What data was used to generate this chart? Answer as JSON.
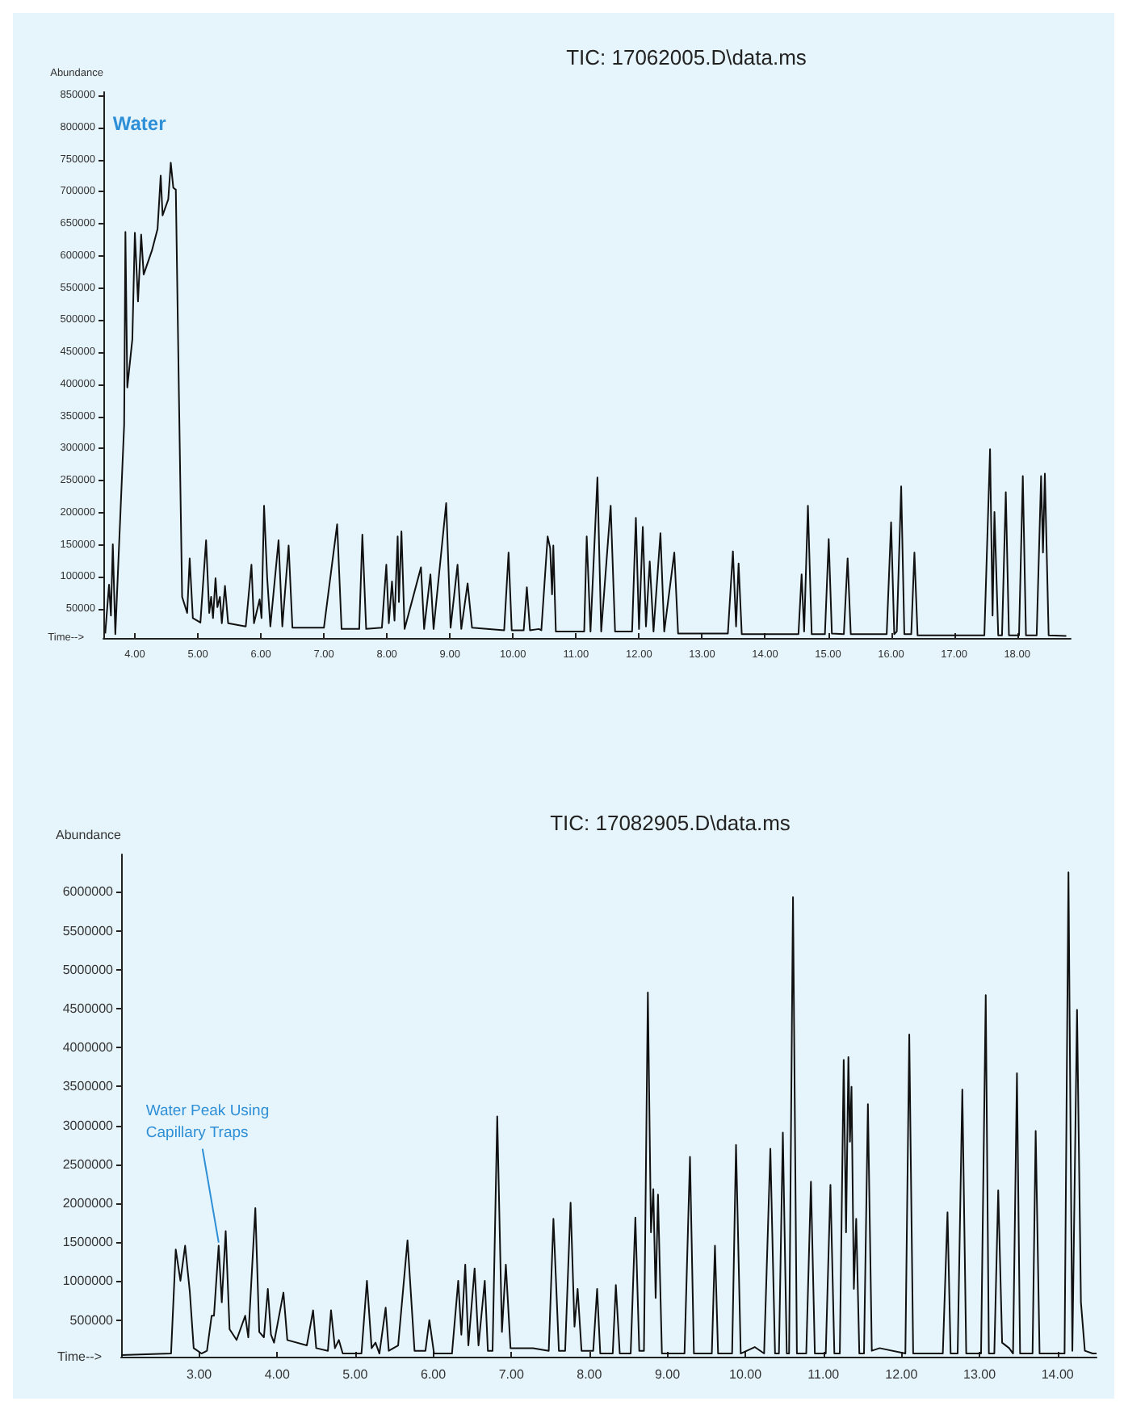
{
  "chart_data": [
    {
      "type": "line",
      "title": "TIC: 17062005.D\\data.ms",
      "xlabel": "Time-->",
      "ylabel": "Abundance",
      "marker": "none",
      "grid": false,
      "xlim": [
        3.5,
        18.85
      ],
      "ylim": [
        5000,
        855000
      ],
      "xticks": [
        {
          "value": 4,
          "label": "4.00"
        },
        {
          "value": 5,
          "label": "5.00"
        },
        {
          "value": 6,
          "label": "6.00"
        },
        {
          "value": 7,
          "label": "7.00"
        },
        {
          "value": 8,
          "label": "8.00"
        },
        {
          "value": 9,
          "label": "9.00"
        },
        {
          "value": 10,
          "label": "10.00"
        },
        {
          "value": 11,
          "label": "11.00"
        },
        {
          "value": 12,
          "label": "12.00"
        },
        {
          "value": 13,
          "label": "13.00"
        },
        {
          "value": 14,
          "label": "14.00"
        },
        {
          "value": 15,
          "label": "15.00"
        },
        {
          "value": 16,
          "label": "16.00"
        },
        {
          "value": 17,
          "label": "17.00"
        },
        {
          "value": 18,
          "label": "18.00"
        }
      ],
      "yticks": [
        50000,
        100000,
        150000,
        200000,
        250000,
        300000,
        350000,
        400000,
        450000,
        500000,
        550000,
        600000,
        650000,
        700000,
        750000,
        800000,
        850000
      ],
      "annotations": [
        {
          "text": "Water",
          "x": 4.57,
          "y": 745000
        }
      ],
      "series": [
        {
          "color": "#111111",
          "x": [
            3.53,
            3.59,
            3.62,
            3.65,
            3.69,
            3.83,
            3.85,
            3.88,
            3.96,
            4.0,
            4.05,
            4.1,
            4.14,
            4.27,
            4.36,
            4.41,
            4.44,
            4.53,
            4.57,
            4.61,
            4.65,
            4.7,
            4.75,
            4.83,
            4.87,
            4.92,
            5.04,
            5.13,
            5.18,
            5.21,
            5.24,
            5.28,
            5.31,
            5.35,
            5.38,
            5.43,
            5.48,
            5.76,
            5.85,
            5.89,
            5.98,
            6.01,
            6.05,
            6.1,
            6.15,
            6.28,
            6.34,
            6.44,
            6.5,
            7.0,
            7.21,
            7.28,
            7.56,
            7.61,
            7.67,
            7.92,
            7.99,
            8.03,
            8.08,
            8.12,
            8.17,
            8.19,
            8.23,
            8.28,
            8.54,
            8.59,
            8.69,
            8.74,
            8.94,
            9.01,
            9.12,
            9.18,
            9.28,
            9.35,
            9.86,
            9.93,
            9.98,
            10.17,
            10.22,
            10.27,
            10.41,
            10.45,
            10.55,
            10.59,
            10.62,
            10.64,
            10.68,
            11.13,
            11.17,
            11.23,
            11.34,
            11.4,
            11.55,
            11.62,
            11.89,
            11.95,
            12.0,
            12.06,
            12.11,
            12.17,
            12.23,
            12.34,
            12.4,
            12.56,
            12.62,
            13.41,
            13.49,
            13.54,
            13.58,
            13.63,
            14.53,
            14.58,
            14.62,
            14.68,
            14.74,
            14.95,
            15.01,
            15.06,
            15.25,
            15.31,
            15.36,
            15.93,
            16.0,
            16.05,
            16.09,
            16.16,
            16.21,
            16.32,
            16.37,
            16.42,
            17.48,
            17.57,
            17.61,
            17.64,
            17.7,
            17.76,
            17.82,
            17.87,
            18.03,
            18.09,
            18.14,
            18.31,
            18.38,
            18.41,
            18.44,
            18.5,
            18.78
          ],
          "values": [
            12000,
            88000,
            40000,
            151000,
            11000,
            337000,
            637000,
            395000,
            470000,
            636000,
            529000,
            633000,
            571000,
            608000,
            642000,
            725000,
            663000,
            688000,
            745000,
            706000,
            703000,
            378000,
            69000,
            44000,
            129000,
            36000,
            29000,
            157000,
            44000,
            69000,
            36000,
            98000,
            53000,
            69000,
            28000,
            86000,
            28000,
            23000,
            119000,
            28000,
            65000,
            36000,
            211000,
            98000,
            23000,
            157000,
            23000,
            149000,
            21000,
            21000,
            182000,
            19000,
            19000,
            166000,
            19000,
            21000,
            119000,
            28000,
            93000,
            32000,
            163000,
            61000,
            171000,
            19000,
            115000,
            19000,
            104000,
            19000,
            215000,
            21000,
            119000,
            19000,
            90000,
            21000,
            17000,
            138000,
            17000,
            17000,
            84000,
            17000,
            19000,
            17000,
            163000,
            145000,
            73000,
            149000,
            15000,
            15000,
            163000,
            15000,
            255000,
            15000,
            211000,
            15000,
            15000,
            192000,
            19000,
            178000,
            23000,
            124000,
            15000,
            168000,
            15000,
            138000,
            12000,
            12000,
            140000,
            23000,
            121000,
            11000,
            11000,
            104000,
            15000,
            211000,
            11000,
            11000,
            159000,
            12000,
            11000,
            129000,
            11000,
            11000,
            185000,
            11000,
            15000,
            241000,
            11000,
            11000,
            138000,
            9000,
            9000,
            299000,
            40000,
            201000,
            9000,
            9000,
            232000,
            9000,
            9000,
            257000,
            9000,
            9000,
            257000,
            138000,
            261000,
            9000,
            8000
          ]
        }
      ]
    },
    {
      "type": "line",
      "title": "TIC: 17082905.D\\data.ms",
      "xlabel": "Time-->",
      "ylabel": "Abundance",
      "marker": "none",
      "grid": false,
      "xlim": [
        2,
        14.5
      ],
      "ylim": [
        30000,
        6480000
      ],
      "xticks": [
        {
          "value": 3,
          "label": "3.00"
        },
        {
          "value": 4,
          "label": "4.00"
        },
        {
          "value": 5,
          "label": "5.00"
        },
        {
          "value": 6,
          "label": "6.00"
        },
        {
          "value": 7,
          "label": "7.00"
        },
        {
          "value": 8,
          "label": "8.00"
        },
        {
          "value": 9,
          "label": "9.00"
        },
        {
          "value": 10,
          "label": "10.00"
        },
        {
          "value": 11,
          "label": "11.00"
        },
        {
          "value": 12,
          "label": "12.00"
        },
        {
          "value": 13,
          "label": "13.00"
        },
        {
          "value": 14,
          "label": "14.00"
        }
      ],
      "yticks": [
        500000,
        1000000,
        1500000,
        2000000,
        2500000,
        3000000,
        3500000,
        4000000,
        4500000,
        5000000,
        5500000,
        6000000
      ],
      "annotations": [
        {
          "text": "Water Peak Using Capillary Traps",
          "x": 3.25,
          "y": 1455000
        }
      ],
      "series": [
        {
          "color": "#111111",
          "x": [
            2.0,
            2.64,
            2.7,
            2.76,
            2.82,
            2.88,
            2.93,
            3.03,
            3.1,
            3.16,
            3.19,
            3.25,
            3.29,
            3.34,
            3.39,
            3.48,
            3.59,
            3.63,
            3.72,
            3.77,
            3.83,
            3.88,
            3.92,
            3.96,
            4.08,
            4.13,
            4.38,
            4.46,
            4.5,
            4.65,
            4.69,
            4.74,
            4.79,
            4.84,
            5.08,
            5.15,
            5.21,
            5.26,
            5.31,
            5.39,
            5.43,
            5.55,
            5.67,
            5.76,
            5.9,
            5.95,
            6.01,
            6.24,
            6.32,
            6.36,
            6.41,
            6.45,
            6.53,
            6.58,
            6.66,
            6.7,
            6.76,
            6.82,
            6.88,
            6.93,
            6.99,
            7.28,
            7.48,
            7.54,
            7.61,
            7.69,
            7.76,
            7.81,
            7.85,
            7.9,
            8.05,
            8.1,
            8.14,
            8.3,
            8.34,
            8.39,
            8.53,
            8.59,
            8.64,
            8.7,
            8.75,
            8.79,
            8.82,
            8.85,
            8.88,
            8.93,
            9.22,
            9.29,
            9.34,
            9.57,
            9.61,
            9.65,
            9.83,
            9.88,
            9.94,
            10.12,
            10.24,
            10.32,
            10.38,
            10.43,
            10.48,
            10.53,
            10.56,
            10.61,
            10.66,
            10.78,
            10.84,
            10.89,
            11.03,
            11.09,
            11.14,
            11.21,
            11.26,
            11.29,
            11.32,
            11.34,
            11.36,
            11.39,
            11.42,
            11.46,
            11.52,
            11.57,
            11.62,
            11.72,
            12.05,
            12.1,
            12.15,
            12.53,
            12.59,
            12.63,
            12.72,
            12.78,
            12.83,
            13.02,
            13.08,
            13.12,
            13.19,
            13.24,
            13.29,
            13.38,
            13.43,
            13.48,
            13.52,
            13.68,
            13.72,
            13.77,
            14.09,
            14.14,
            14.19,
            14.25,
            14.3,
            14.35,
            14.45,
            14.5
          ],
          "values": [
            50000,
            71000,
            1407000,
            1005000,
            1455000,
            867000,
            140000,
            71000,
            106000,
            556000,
            556000,
            1455000,
            729000,
            1642000,
            383000,
            245000,
            556000,
            279000,
            1939000,
            348000,
            279000,
            901000,
            313000,
            210000,
            853000,
            244000,
            175000,
            625000,
            140000,
            106000,
            625000,
            140000,
            244000,
            71000,
            71000,
            1005000,
            140000,
            210000,
            71000,
            659000,
            106000,
            175000,
            1524000,
            106000,
            106000,
            500000,
            71000,
            71000,
            1005000,
            313000,
            1213000,
            175000,
            1164000,
            175000,
            1005000,
            106000,
            106000,
            3115000,
            348000,
            1213000,
            140000,
            140000,
            106000,
            1801000,
            106000,
            106000,
            2008000,
            417000,
            901000,
            106000,
            106000,
            901000,
            71000,
            71000,
            950000,
            71000,
            71000,
            1815000,
            106000,
            106000,
            4706000,
            1628000,
            2181000,
            784000,
            2112000,
            71000,
            71000,
            2596000,
            71000,
            71000,
            1455000,
            71000,
            71000,
            2749000,
            71000,
            154000,
            71000,
            2700000,
            71000,
            71000,
            2908000,
            71000,
            71000,
            5931000,
            71000,
            71000,
            2278000,
            71000,
            71000,
            2237000,
            71000,
            71000,
            3842000,
            1628000,
            3876000,
            2790000,
            3496000,
            901000,
            1801000,
            71000,
            71000,
            3274000,
            106000,
            140000,
            71000,
            4167000,
            71000,
            71000,
            1884000,
            71000,
            71000,
            3461000,
            71000,
            71000,
            4672000,
            71000,
            71000,
            2167000,
            210000,
            140000,
            71000,
            3669000,
            71000,
            71000,
            2928000,
            71000,
            71000,
            6249000,
            106000,
            4484000,
            729000,
            106000,
            71000,
            71000
          ]
        }
      ]
    }
  ]
}
